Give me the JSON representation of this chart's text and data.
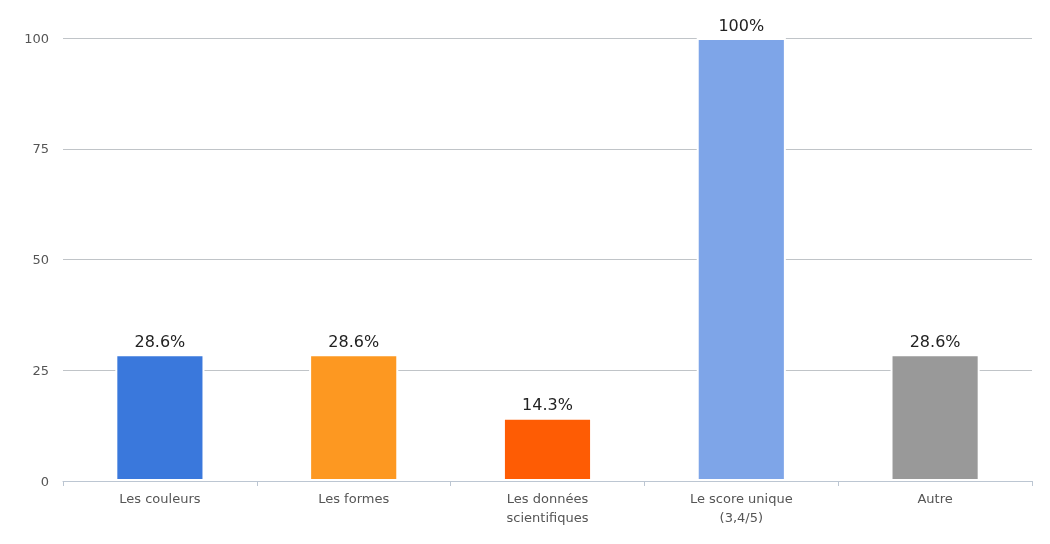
{
  "chart_data": {
    "type": "bar",
    "categories": [
      "Les couleurs",
      "Les formes",
      "Les données\nscientifiques",
      "Le score unique\n(3,4/5)",
      "Autre"
    ],
    "values": [
      28.6,
      28.6,
      14.3,
      100,
      28.6
    ],
    "colors": [
      "#3a78dc",
      "#fd9821",
      "#fe5c04",
      "#7ea5e8",
      "#999999"
    ],
    "value_labels": [
      "28.6%",
      "28.6%",
      "14.3%",
      "100%",
      "28.6%"
    ],
    "ylim": [
      0,
      100
    ],
    "yticks": [
      0,
      25,
      50,
      75,
      100
    ],
    "grid": "y"
  }
}
